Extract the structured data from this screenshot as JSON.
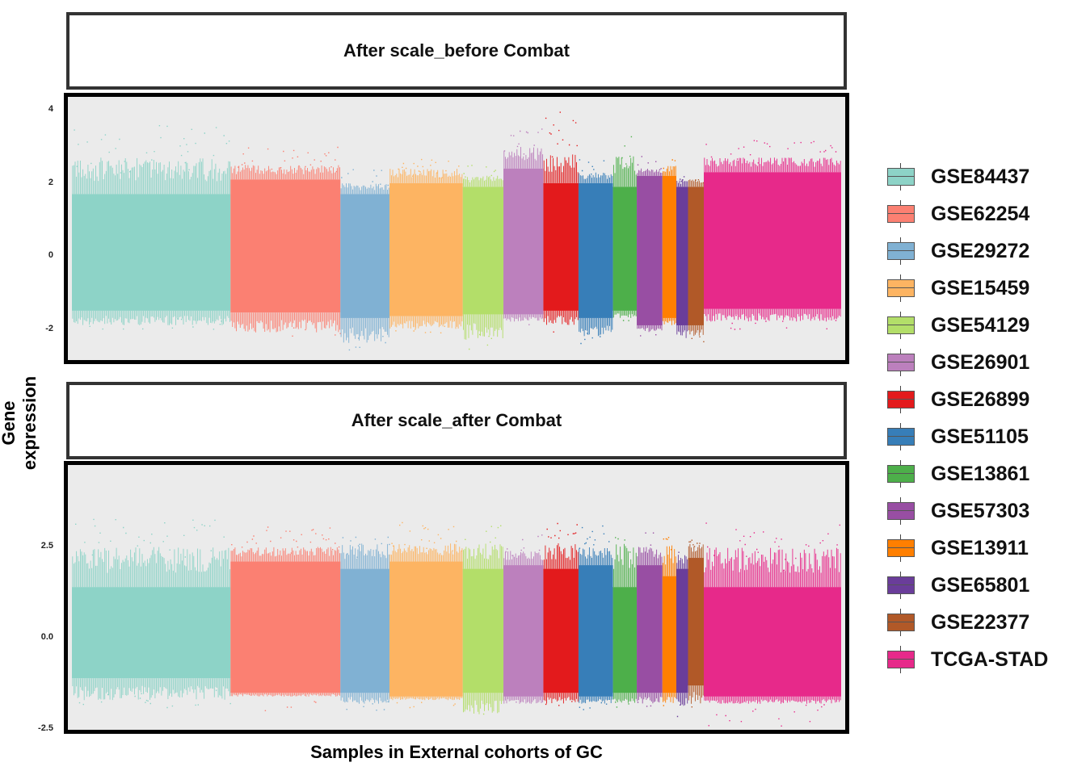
{
  "chart_data": [
    {
      "type": "box",
      "title": "After scale_before Combat",
      "xlabel": "Samples in External cohorts of GC",
      "ylabel": "Gene expression",
      "ylim": [
        -2.6,
        4.3
      ],
      "yticks": [
        "4",
        "2",
        "0",
        "-2"
      ],
      "ytick_values": [
        4,
        2,
        0,
        -2
      ],
      "grid": false,
      "legend_position": "right",
      "series": [
        {
          "name": "GSE84437",
          "color": "#8DD3C7",
          "samples": 433,
          "q1": -1.4,
          "q3": 1.8,
          "whisker_low": -1.8,
          "whisker_high": 2.8,
          "out_low": -1.9,
          "out_high": 3.7
        },
        {
          "name": "GSE62254",
          "color": "#FB8072",
          "samples": 300,
          "q1": -1.45,
          "q3": 2.2,
          "whisker_low": -2.0,
          "whisker_high": 2.6,
          "out_low": -2.1,
          "out_high": 3.1
        },
        {
          "name": "GSE29272",
          "color": "#80B1D3",
          "samples": 134,
          "q1": -1.6,
          "q3": 1.8,
          "whisker_low": -2.3,
          "whisker_high": 2.1,
          "out_low": -2.5,
          "out_high": 2.5
        },
        {
          "name": "GSE15459",
          "color": "#FDB462",
          "samples": 200,
          "q1": -1.55,
          "q3": 2.1,
          "whisker_low": -1.9,
          "whisker_high": 2.5,
          "out_low": -2.0,
          "out_high": 2.8
        },
        {
          "name": "GSE54129",
          "color": "#B3DE69",
          "samples": 111,
          "q1": -1.5,
          "q3": 2.0,
          "whisker_low": -2.2,
          "whisker_high": 2.3,
          "out_low": -2.5,
          "out_high": 2.6
        },
        {
          "name": "GSE26901",
          "color": "#BC80BD",
          "samples": 109,
          "q1": -1.5,
          "q3": 2.5,
          "whisker_low": -1.7,
          "whisker_high": 3.1,
          "out_low": -1.8,
          "out_high": 3.6
        },
        {
          "name": "GSE26899",
          "color": "#E31A1C",
          "samples": 96,
          "q1": -1.4,
          "q3": 2.1,
          "whisker_low": -1.8,
          "whisker_high": 2.9,
          "out_low": -2.0,
          "out_high": 4.2
        },
        {
          "name": "GSE51105",
          "color": "#377EB8",
          "samples": 94,
          "q1": -1.6,
          "q3": 2.1,
          "whisker_low": -2.1,
          "whisker_high": 2.4,
          "out_low": -2.3,
          "out_high": 2.9
        },
        {
          "name": "GSE13861",
          "color": "#4DAF4A",
          "samples": 65,
          "q1": -1.4,
          "q3": 2.0,
          "whisker_low": -1.6,
          "whisker_high": 2.9,
          "out_low": -1.7,
          "out_high": 3.4
        },
        {
          "name": "GSE57303",
          "color": "#984EA3",
          "samples": 70,
          "q1": -1.8,
          "q3": 2.3,
          "whisker_low": -2.0,
          "whisker_high": 2.5,
          "out_low": -2.1,
          "out_high": 2.9
        },
        {
          "name": "GSE13911",
          "color": "#FF7F00",
          "samples": 38,
          "q1": -1.6,
          "q3": 2.3,
          "whisker_low": -1.8,
          "whisker_high": 2.6,
          "out_low": -1.8,
          "out_high": 2.8
        },
        {
          "name": "GSE65801",
          "color": "#6A3D9A",
          "samples": 32,
          "q1": -1.8,
          "q3": 2.0,
          "whisker_low": -2.2,
          "whisker_high": 2.2,
          "out_low": -2.5,
          "out_high": 2.3
        },
        {
          "name": "GSE22377",
          "color": "#B15928",
          "samples": 43,
          "q1": -1.8,
          "q3": 2.0,
          "whisker_low": -2.1,
          "whisker_high": 2.2,
          "out_low": -2.3,
          "out_high": 2.4
        },
        {
          "name": "TCGA-STAD",
          "color": "#E7298A",
          "samples": 375,
          "q1": -1.35,
          "q3": 2.4,
          "whisker_low": -1.7,
          "whisker_high": 2.8,
          "out_low": -1.9,
          "out_high": 3.3
        }
      ]
    },
    {
      "type": "box",
      "title": "After scale_after Combat",
      "xlabel": "Samples in External cohorts of GC",
      "ylabel": "Gene expression",
      "ylim": [
        -2.5,
        4.6
      ],
      "yticks": [
        "2.5",
        "0.0",
        "-2.5"
      ],
      "ytick_values": [
        2.5,
        0,
        -2.5
      ],
      "grid": false,
      "legend_position": "right",
      "series": [
        {
          "name": "GSE84437",
          "color": "#8DD3C7",
          "samples": 433,
          "q1": -1.0,
          "q3": 1.5,
          "whisker_low": -1.6,
          "whisker_high": 2.6,
          "out_low": -1.8,
          "out_high": 3.4
        },
        {
          "name": "GSE62254",
          "color": "#FB8072",
          "samples": 300,
          "q1": -1.4,
          "q3": 2.2,
          "whisker_low": -1.5,
          "whisker_high": 2.6,
          "out_low": -2.1,
          "out_high": 3.2
        },
        {
          "name": "GSE29272",
          "color": "#80B1D3",
          "samples": 134,
          "q1": -1.4,
          "q3": 2.0,
          "whisker_low": -1.7,
          "whisker_high": 2.7,
          "out_low": -2.0,
          "out_high": 2.9
        },
        {
          "name": "GSE15459",
          "color": "#FDB462",
          "samples": 200,
          "q1": -1.5,
          "q3": 2.2,
          "whisker_low": -1.6,
          "whisker_high": 2.7,
          "out_low": -1.8,
          "out_high": 3.3
        },
        {
          "name": "GSE54129",
          "color": "#B3DE69",
          "samples": 111,
          "q1": -1.4,
          "q3": 2.0,
          "whisker_low": -2.0,
          "whisker_high": 2.7,
          "out_low": -2.1,
          "out_high": 3.2
        },
        {
          "name": "GSE26901",
          "color": "#BC80BD",
          "samples": 109,
          "q1": -1.5,
          "q3": 2.1,
          "whisker_low": -1.7,
          "whisker_high": 2.5,
          "out_low": -1.9,
          "out_high": 3.0
        },
        {
          "name": "GSE26899",
          "color": "#E31A1C",
          "samples": 96,
          "q1": -1.4,
          "q3": 2.0,
          "whisker_low": -1.7,
          "whisker_high": 2.7,
          "out_low": -1.8,
          "out_high": 3.5
        },
        {
          "name": "GSE51105",
          "color": "#377EB8",
          "samples": 94,
          "q1": -1.5,
          "q3": 2.1,
          "whisker_low": -1.7,
          "whisker_high": 2.6,
          "out_low": -1.9,
          "out_high": 3.2
        },
        {
          "name": "GSE13861",
          "color": "#4DAF4A",
          "samples": 65,
          "q1": -1.4,
          "q3": 1.5,
          "whisker_low": -1.7,
          "whisker_high": 2.7,
          "out_low": -1.8,
          "out_high": 3.0
        },
        {
          "name": "GSE57303",
          "color": "#984EA3",
          "samples": 70,
          "q1": -1.4,
          "q3": 2.1,
          "whisker_low": -1.7,
          "whisker_high": 2.6,
          "out_low": -1.9,
          "out_high": 3.2
        },
        {
          "name": "GSE13911",
          "color": "#FF7F00",
          "samples": 38,
          "q1": -1.4,
          "q3": 1.8,
          "whisker_low": -1.7,
          "whisker_high": 2.7,
          "out_low": -1.9,
          "out_high": 2.9
        },
        {
          "name": "GSE65801",
          "color": "#6A3D9A",
          "samples": 32,
          "q1": -1.4,
          "q3": 2.0,
          "whisker_low": -1.8,
          "whisker_high": 2.4,
          "out_low": -2.1,
          "out_high": 2.6
        },
        {
          "name": "GSE22377",
          "color": "#B15928",
          "samples": 43,
          "q1": -1.2,
          "q3": 2.3,
          "whisker_low": -1.7,
          "whisker_high": 2.7,
          "out_low": -1.9,
          "out_high": 2.8
        },
        {
          "name": "TCGA-STAD",
          "color": "#E7298A",
          "samples": 375,
          "q1": -1.5,
          "q3": 1.5,
          "whisker_low": -1.7,
          "whisker_high": 2.6,
          "out_low": -2.3,
          "out_high": 3.3
        }
      ]
    }
  ]
}
